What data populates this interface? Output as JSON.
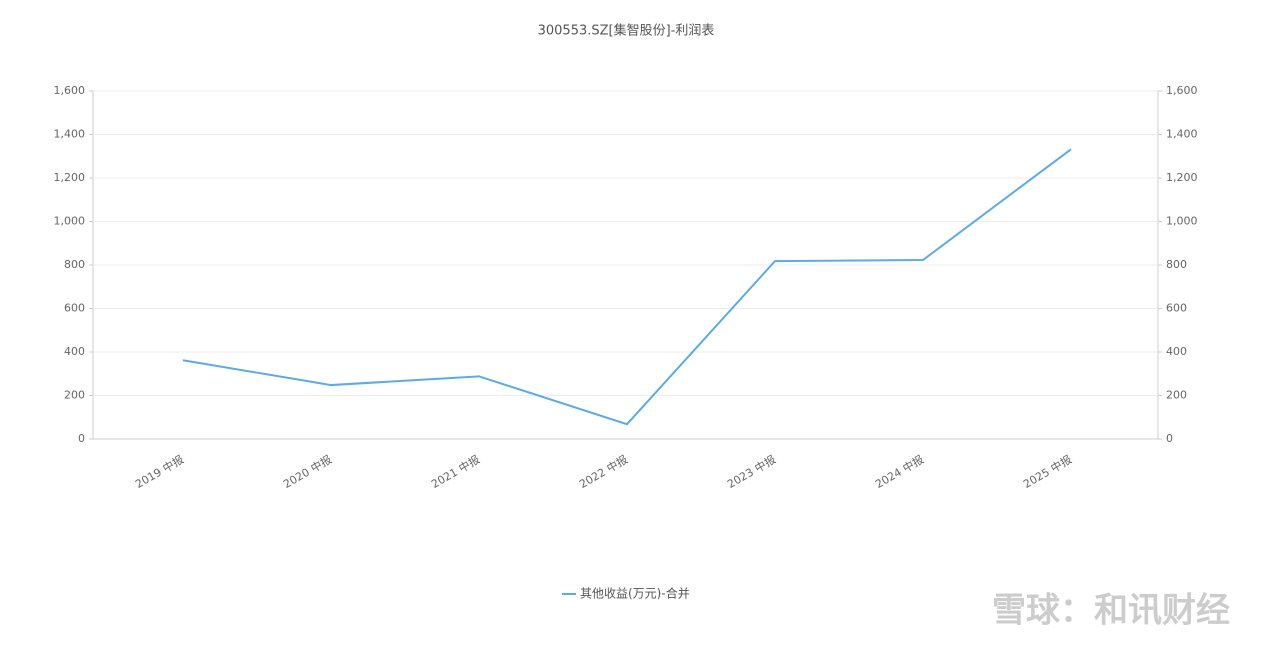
{
  "chart_data": {
    "type": "line",
    "title": "300553.SZ[集智股份]-利润表",
    "categories": [
      "2019 中报",
      "2020 中报",
      "2021 中报",
      "2022 中报",
      "2023 中报",
      "2024 中报",
      "2025 中报"
    ],
    "series": [
      {
        "name": "其他收益(万元)-合并",
        "color": "#5aabea",
        "values": [
          362,
          248,
          288,
          68,
          818,
          823,
          1332
        ]
      }
    ],
    "ylim": [
      0,
      1600
    ],
    "yticks": [
      0,
      200,
      400,
      600,
      800,
      {
        "value": 1000,
        "label": "1,000"
      },
      {
        "value": 1200,
        "label": "1,200"
      },
      {
        "value": 1400,
        "label": "1,400"
      },
      {
        "value": 1600,
        "label": "1,600"
      }
    ],
    "y2lim": [
      0,
      1600
    ],
    "y2ticks": [
      0,
      200,
      400,
      600,
      800,
      {
        "value": 1000,
        "label": "1,000"
      },
      {
        "value": 1200,
        "label": "1,200"
      },
      {
        "value": 1400,
        "label": "1,400"
      },
      {
        "value": 1600,
        "label": "1,600"
      }
    ],
    "grid": true,
    "legend": "bottom",
    "watermark": "雪球：和讯财经"
  }
}
